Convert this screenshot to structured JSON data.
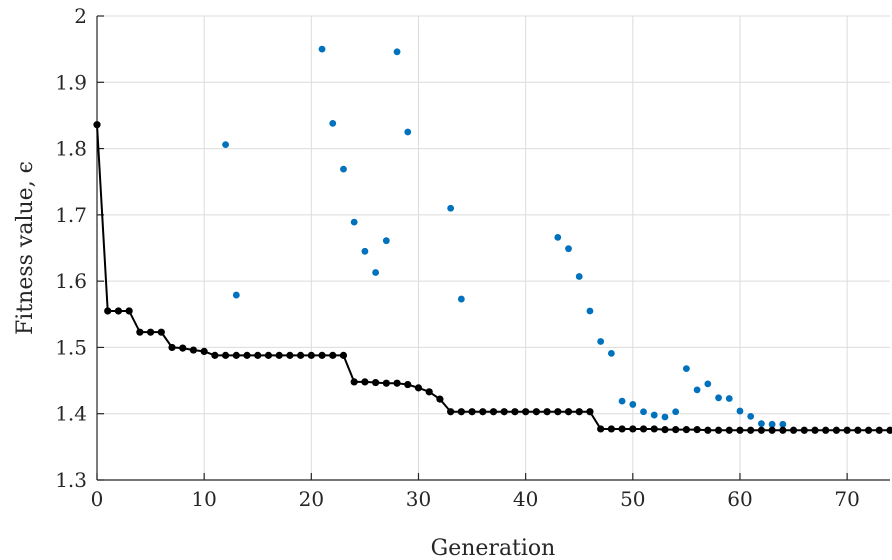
{
  "chart_data": {
    "type": "scatter",
    "xlabel": "Generation",
    "ylabel": "Fitness value, ϵ",
    "xlim": [
      0,
      74
    ],
    "ylim": [
      1.3,
      2.0
    ],
    "xticks": [
      0,
      10,
      20,
      30,
      40,
      50,
      60,
      70
    ],
    "yticks": [
      1.3,
      1.4,
      1.5,
      1.6,
      1.7,
      1.8,
      1.9,
      2.0
    ],
    "xtick_labels": [
      "0",
      "10",
      "20",
      "30",
      "40",
      "50",
      "60",
      "70"
    ],
    "ytick_labels": [
      "1.3",
      "1.4",
      "1.5",
      "1.6",
      "1.7",
      "1.8",
      "1.9",
      "2"
    ],
    "grid": true,
    "series": [
      {
        "style": "scatter",
        "color": "#0072bd",
        "points": [
          [
            12,
            1.806
          ],
          [
            13,
            1.579
          ],
          [
            21,
            1.95
          ],
          [
            22,
            1.838
          ],
          [
            23,
            1.769
          ],
          [
            24,
            1.689
          ],
          [
            25,
            1.645
          ],
          [
            26,
            1.613
          ],
          [
            27,
            1.661
          ],
          [
            28,
            1.946
          ],
          [
            29,
            1.825
          ],
          [
            33,
            1.71
          ],
          [
            34,
            1.573
          ],
          [
            43,
            1.666
          ],
          [
            44,
            1.649
          ],
          [
            45,
            1.607
          ],
          [
            46,
            1.555
          ],
          [
            47,
            1.509
          ],
          [
            48,
            1.491
          ],
          [
            49,
            1.419
          ],
          [
            50,
            1.414
          ],
          [
            51,
            1.403
          ],
          [
            52,
            1.398
          ],
          [
            53,
            1.395
          ],
          [
            54,
            1.403
          ],
          [
            55,
            1.468
          ],
          [
            56,
            1.436
          ],
          [
            57,
            1.445
          ],
          [
            58,
            1.424
          ],
          [
            59,
            1.423
          ],
          [
            60,
            1.404
          ],
          [
            61,
            1.396
          ],
          [
            62,
            1.385
          ],
          [
            63,
            1.384
          ],
          [
            64,
            1.384
          ],
          [
            65,
            1.375
          ],
          [
            66,
            1.375
          ],
          [
            67,
            1.375
          ],
          [
            68,
            1.375
          ],
          [
            69,
            1.375
          ],
          [
            70,
            1.375
          ],
          [
            71,
            1.375
          ],
          [
            72,
            1.375
          ],
          [
            73,
            1.375
          ],
          [
            74,
            1.375
          ]
        ]
      },
      {
        "style": "line-markers",
        "color": "#000000",
        "points": [
          [
            0,
            1.836
          ],
          [
            1,
            1.555
          ],
          [
            2,
            1.555
          ],
          [
            3,
            1.555
          ],
          [
            4,
            1.523
          ],
          [
            5,
            1.523
          ],
          [
            6,
            1.523
          ],
          [
            7,
            1.5
          ],
          [
            8,
            1.499
          ],
          [
            9,
            1.496
          ],
          [
            10,
            1.494
          ],
          [
            11,
            1.488
          ],
          [
            12,
            1.488
          ],
          [
            13,
            1.488
          ],
          [
            14,
            1.488
          ],
          [
            15,
            1.488
          ],
          [
            16,
            1.488
          ],
          [
            17,
            1.488
          ],
          [
            18,
            1.488
          ],
          [
            19,
            1.488
          ],
          [
            20,
            1.488
          ],
          [
            21,
            1.488
          ],
          [
            22,
            1.488
          ],
          [
            23,
            1.488
          ],
          [
            24,
            1.448
          ],
          [
            25,
            1.448
          ],
          [
            26,
            1.447
          ],
          [
            27,
            1.446
          ],
          [
            28,
            1.446
          ],
          [
            29,
            1.444
          ],
          [
            30,
            1.439
          ],
          [
            31,
            1.433
          ],
          [
            32,
            1.422
          ],
          [
            33,
            1.403
          ],
          [
            34,
            1.403
          ],
          [
            35,
            1.403
          ],
          [
            36,
            1.403
          ],
          [
            37,
            1.403
          ],
          [
            38,
            1.403
          ],
          [
            39,
            1.403
          ],
          [
            40,
            1.403
          ],
          [
            41,
            1.403
          ],
          [
            42,
            1.403
          ],
          [
            43,
            1.403
          ],
          [
            44,
            1.403
          ],
          [
            45,
            1.403
          ],
          [
            46,
            1.403
          ],
          [
            47,
            1.377
          ],
          [
            48,
            1.377
          ],
          [
            49,
            1.377
          ],
          [
            50,
            1.377
          ],
          [
            51,
            1.377
          ],
          [
            52,
            1.377
          ],
          [
            53,
            1.376
          ],
          [
            54,
            1.376
          ],
          [
            55,
            1.376
          ],
          [
            56,
            1.376
          ],
          [
            57,
            1.375
          ],
          [
            58,
            1.375
          ],
          [
            59,
            1.375
          ],
          [
            60,
            1.375
          ],
          [
            61,
            1.375
          ],
          [
            62,
            1.375
          ],
          [
            63,
            1.375
          ],
          [
            64,
            1.375
          ],
          [
            65,
            1.375
          ],
          [
            66,
            1.375
          ],
          [
            67,
            1.375
          ],
          [
            68,
            1.375
          ],
          [
            69,
            1.375
          ],
          [
            70,
            1.375
          ],
          [
            71,
            1.375
          ],
          [
            72,
            1.375
          ],
          [
            73,
            1.375
          ],
          [
            74,
            1.375
          ]
        ]
      }
    ]
  }
}
